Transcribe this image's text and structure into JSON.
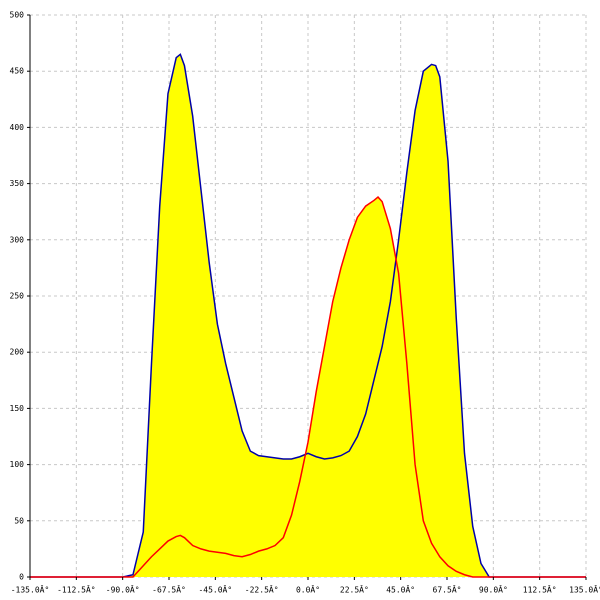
{
  "chart_data": {
    "type": "area",
    "x": [
      -135,
      -90,
      -85,
      -80,
      -76,
      -72,
      -68,
      -64,
      -62,
      -60,
      -56,
      -52,
      -48,
      -44,
      -40,
      -36,
      -32,
      -28,
      -24,
      -20,
      -16,
      -12,
      -8,
      -4,
      0,
      4,
      8,
      12,
      16,
      20,
      24,
      28,
      32,
      34,
      36,
      40,
      44,
      48,
      52,
      56,
      60,
      62,
      64,
      68,
      72,
      76,
      80,
      84,
      88,
      90,
      135
    ],
    "series": [
      {
        "color": "#0000aa",
        "fill": "#ffff00",
        "values": [
          0,
          0,
          2,
          40,
          190,
          330,
          430,
          462,
          465,
          455,
          410,
          345,
          280,
          225,
          190,
          160,
          130,
          112,
          108,
          107,
          106,
          105,
          105,
          107,
          110,
          107,
          105,
          106,
          108,
          112,
          125,
          145,
          175,
          190,
          205,
          245,
          300,
          360,
          415,
          450,
          456,
          455,
          445,
          370,
          230,
          110,
          45,
          12,
          0,
          0,
          0
        ]
      },
      {
        "color": "#ff0000",
        "fill": "#ffff00",
        "values": [
          0,
          0,
          0,
          10,
          18,
          25,
          32,
          36,
          37,
          35,
          28,
          25,
          23,
          22,
          21,
          19,
          18,
          20,
          23,
          25,
          28,
          35,
          55,
          85,
          120,
          165,
          205,
          245,
          275,
          300,
          320,
          330,
          335,
          338,
          334,
          310,
          270,
          190,
          100,
          50,
          30,
          24,
          18,
          10,
          5,
          2,
          0,
          0,
          0,
          0,
          0
        ]
      }
    ],
    "xlim": [
      -135,
      135
    ],
    "xticks": [
      {
        "value": -135,
        "label": "-135.0Â°"
      },
      {
        "value": -112.5,
        "label": "-112.5Â°"
      },
      {
        "value": -90,
        "label": "-90.0Â°"
      },
      {
        "value": -67.5,
        "label": "-67.5Â°"
      },
      {
        "value": -45,
        "label": "-45.0Â°"
      },
      {
        "value": -22.5,
        "label": "-22.5Â°"
      },
      {
        "value": 0,
        "label": "0.0Â°"
      },
      {
        "value": 22.5,
        "label": "22.5Â°"
      },
      {
        "value": 45,
        "label": "45.0Â°"
      },
      {
        "value": 67.5,
        "label": "67.5Â°"
      },
      {
        "value": 90,
        "label": "90.0Â°"
      },
      {
        "value": 112.5,
        "label": "112.5Â°"
      },
      {
        "value": 135,
        "label": "135.0Â°"
      }
    ],
    "ylim": [
      0,
      500
    ],
    "yticks": [
      0,
      50,
      100,
      150,
      200,
      250,
      300,
      350,
      400,
      450,
      500
    ],
    "grid": true
  }
}
